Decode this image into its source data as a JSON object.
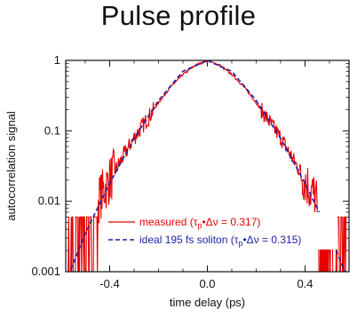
{
  "chart_data": {
    "type": "line",
    "title": "Pulse profile",
    "xlabel": "time delay (ps)",
    "ylabel": "autocorrelation signal",
    "xlim": [
      -0.58,
      0.58
    ],
    "ylim": [
      0.001,
      1
    ],
    "yscale": "log",
    "x_ticks": [
      -0.4,
      0.0,
      0.4
    ],
    "x_tick_labels": [
      "-0.4",
      "0.0",
      "0.4"
    ],
    "y_ticks": [
      0.001,
      0.01,
      0.1,
      1
    ],
    "y_tick_labels": [
      "0.001",
      "0.01",
      "0.1",
      "1"
    ],
    "grid": false,
    "legend_position": "lower-center",
    "series": [
      {
        "name": "measured (τp•Δν = 0.317)",
        "name_main": "measured (τ",
        "name_sub": "p",
        "name_rest": "•Δν = 0.317)",
        "color": "#e60000",
        "style": "solid",
        "x": [
          -0.55,
          -0.5,
          -0.45,
          -0.4,
          -0.35,
          -0.3,
          -0.25,
          -0.2,
          -0.15,
          -0.1,
          -0.05,
          0.0,
          0.05,
          0.1,
          0.15,
          0.2,
          0.25,
          0.3,
          0.35,
          0.4,
          0.45,
          0.5,
          0.55
        ],
        "y": [
          0.003,
          0.005,
          0.01,
          0.02,
          0.04,
          0.08,
          0.14,
          0.25,
          0.42,
          0.63,
          0.85,
          1.0,
          0.85,
          0.63,
          0.42,
          0.25,
          0.14,
          0.08,
          0.04,
          0.02,
          0.01,
          0.005,
          0.003
        ]
      },
      {
        "name": "ideal 195 fs soliton (τp•Δν = 0.315)",
        "name_main": "ideal 195 fs soliton (τ",
        "name_sub": "p",
        "name_rest": "•Δν = 0.315)",
        "color": "#1f1fa8",
        "style": "dashed",
        "pulse_fwhm_fs": 195,
        "x": [
          -0.58,
          -0.5,
          -0.4,
          -0.3,
          -0.2,
          -0.1,
          0.0,
          0.1,
          0.2,
          0.3,
          0.4,
          0.5,
          0.58
        ],
        "y": [
          0.0007,
          0.0035,
          0.018,
          0.078,
          0.27,
          0.7,
          1.0,
          0.7,
          0.27,
          0.078,
          0.018,
          0.0035,
          0.0007
        ]
      }
    ]
  }
}
